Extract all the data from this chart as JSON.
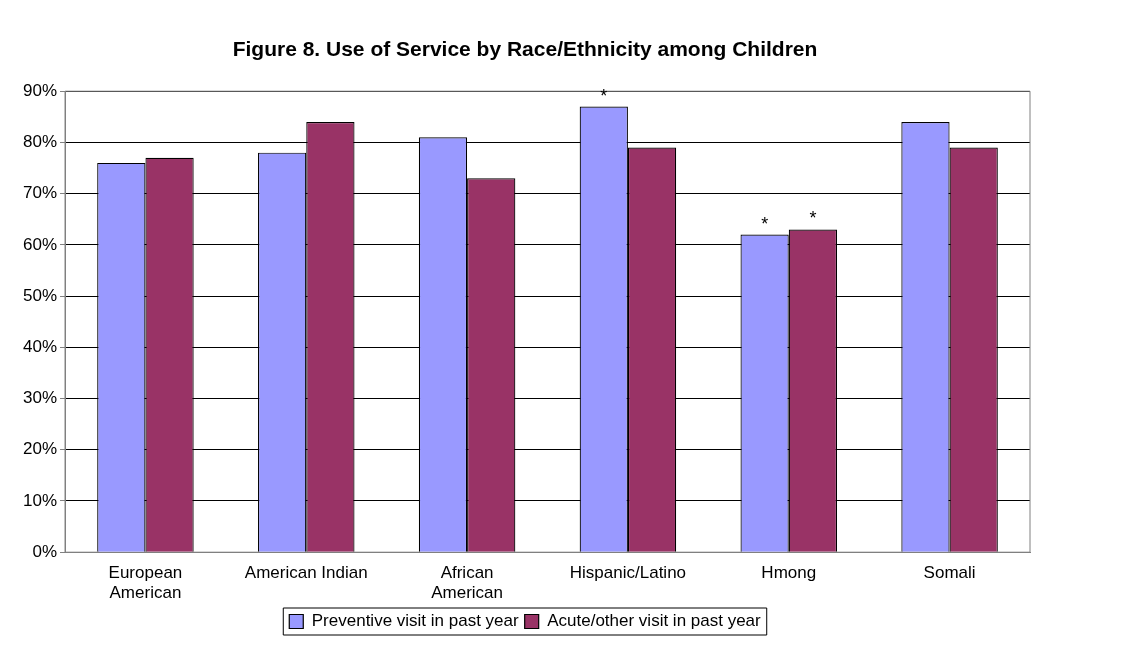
{
  "chart_data": {
    "type": "bar",
    "title": "Figure 8. Use of Service by Race/Ethnicity among Children",
    "categories": [
      "European\nAmerican",
      "American Indian",
      "African\nAmerican",
      "Hispanic/Latino",
      "Hmong",
      "Somali"
    ],
    "series": [
      {
        "name": "Preventive visit in past year",
        "color": "#9999ff",
        "values": [
          76,
          78,
          81,
          87,
          62,
          84
        ]
      },
      {
        "name": "Acute/other visit in past year",
        "color": "#993366",
        "values": [
          77,
          84,
          73,
          79,
          63,
          79
        ]
      }
    ],
    "ylim": [
      0,
      90
    ],
    "yticks": [
      {
        "value": 0,
        "label": "0%"
      },
      {
        "value": 10,
        "label": "10%"
      },
      {
        "value": 20,
        "label": "20%"
      },
      {
        "value": 30,
        "label": "30%"
      },
      {
        "value": 40,
        "label": "40%"
      },
      {
        "value": 50,
        "label": "50%"
      },
      {
        "value": 60,
        "label": "60%"
      },
      {
        "value": 70,
        "label": "70%"
      },
      {
        "value": 80,
        "label": "80%"
      },
      {
        "value": 90,
        "label": "90%"
      }
    ],
    "grid": "y",
    "legend": "bottom",
    "annotations": [
      {
        "text": "*",
        "x": "Hispanic/Latino",
        "y": 87
      },
      {
        "text": "*",
        "x": "Hmong",
        "y": 62
      },
      {
        "text": "*",
        "x": "Hmong",
        "y": 63
      }
    ]
  }
}
